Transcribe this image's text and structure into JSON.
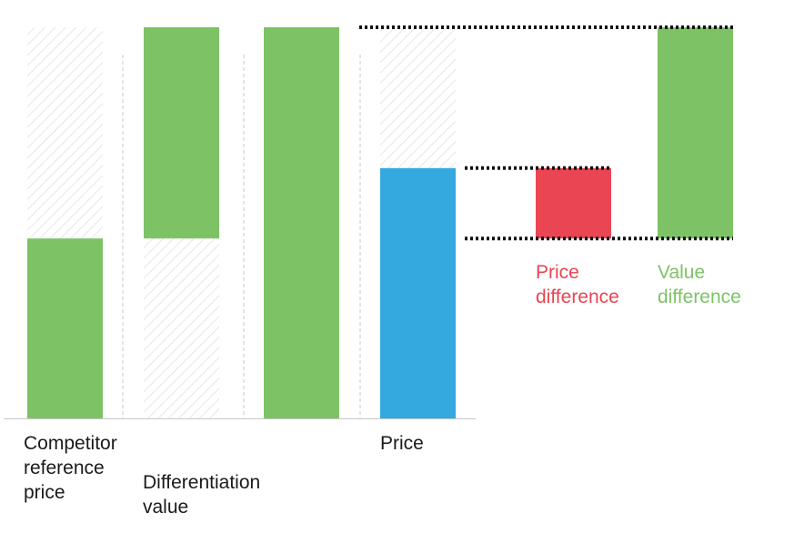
{
  "chart_data": {
    "type": "bar",
    "title": "",
    "xlabel": "",
    "ylabel": "",
    "ylim": [
      0,
      100
    ],
    "grid": false,
    "legend": "none",
    "axis_values_shown": false,
    "categories": [
      "Competitor reference price",
      "Differentiation value",
      "",
      "Price"
    ],
    "bars": [
      {
        "name": "competitor",
        "category": "Competitor reference price",
        "bottom": 0,
        "top": 46,
        "color": "#7dc366",
        "label": [
          "Competitor",
          "reference",
          "price"
        ]
      },
      {
        "name": "differentiation",
        "category": "Differentiation value",
        "bottom": 46,
        "top": 100,
        "color": "#7dc366",
        "label": [
          "Differentiation",
          "value"
        ]
      },
      {
        "name": "value-total",
        "category": "",
        "bottom": 0,
        "top": 100,
        "color": "#7dc366",
        "label": []
      },
      {
        "name": "price",
        "category": "Price",
        "bottom": 0,
        "top": 64,
        "color": "#34a9df",
        "label": [
          "Price"
        ]
      }
    ],
    "annotations": [
      {
        "name": "price-difference",
        "bottom": 46,
        "top": 64,
        "color": "#ea4552",
        "label": [
          "Price",
          "difference"
        ]
      },
      {
        "name": "value-difference",
        "bottom": 46,
        "top": 100,
        "color": "#7dc366",
        "label": [
          "Value",
          "difference"
        ]
      }
    ],
    "reference_levels": [
      100,
      64,
      46
    ]
  },
  "colors": {
    "value_green": "#7dc366",
    "price_blue": "#34a9df",
    "difference_red": "#ea4552",
    "hatch": "#cfcfcf",
    "divider": "#c8c8c8",
    "axis": "#c8c8c8",
    "dotted_line": "#111111"
  }
}
